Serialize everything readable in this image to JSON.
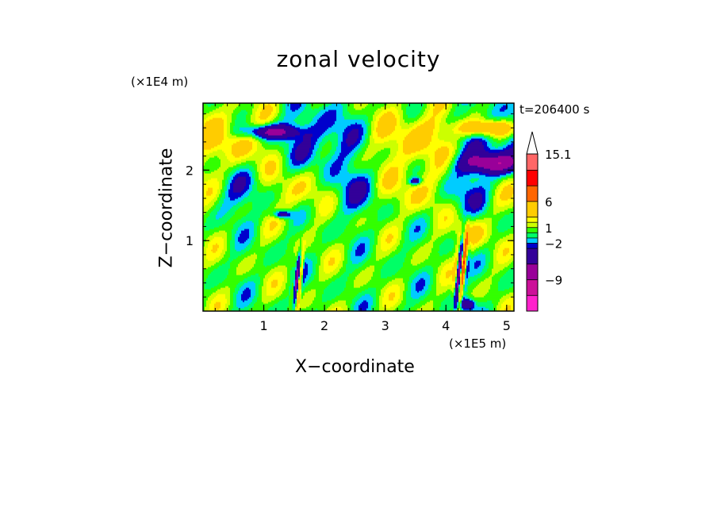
{
  "chart_data": {
    "type": "heatmap",
    "title": "zonal velocity",
    "xlabel": "X−coordinate",
    "ylabel": "Z−coordinate",
    "x_unit": "(×1E5 m)",
    "y_unit": "(×1E4 m)",
    "time_label": "t=206400 s",
    "x_ticks": [
      "1",
      "2",
      "3",
      "4",
      "5"
    ],
    "x_tick_values": [
      1,
      2,
      3,
      4,
      5
    ],
    "y_ticks": [
      "1",
      "2"
    ],
    "y_tick_values": [
      1,
      2
    ],
    "xlim": [
      0,
      5.12
    ],
    "ylim": [
      0,
      2.95
    ],
    "colorbar": {
      "labels": [
        "15.1",
        "6",
        "1",
        "−2",
        "−9"
      ],
      "label_values": [
        15.1,
        6,
        1,
        -2,
        -9
      ],
      "levels": [
        -15,
        -12,
        -9,
        -6,
        -3,
        -2,
        -1,
        0,
        1,
        2,
        3,
        6,
        9,
        12,
        15.1
      ],
      "colors": [
        "#ff22cc",
        "#cc1199",
        "#990099",
        "#330099",
        "#0000cc",
        "#00ccff",
        "#00ff66",
        "#33ff00",
        "#ccff00",
        "#ffff00",
        "#ffcc00",
        "#ff6600",
        "#ff0000",
        "#ff6666",
        "#ffbbbb"
      ],
      "extend": "max"
    }
  }
}
